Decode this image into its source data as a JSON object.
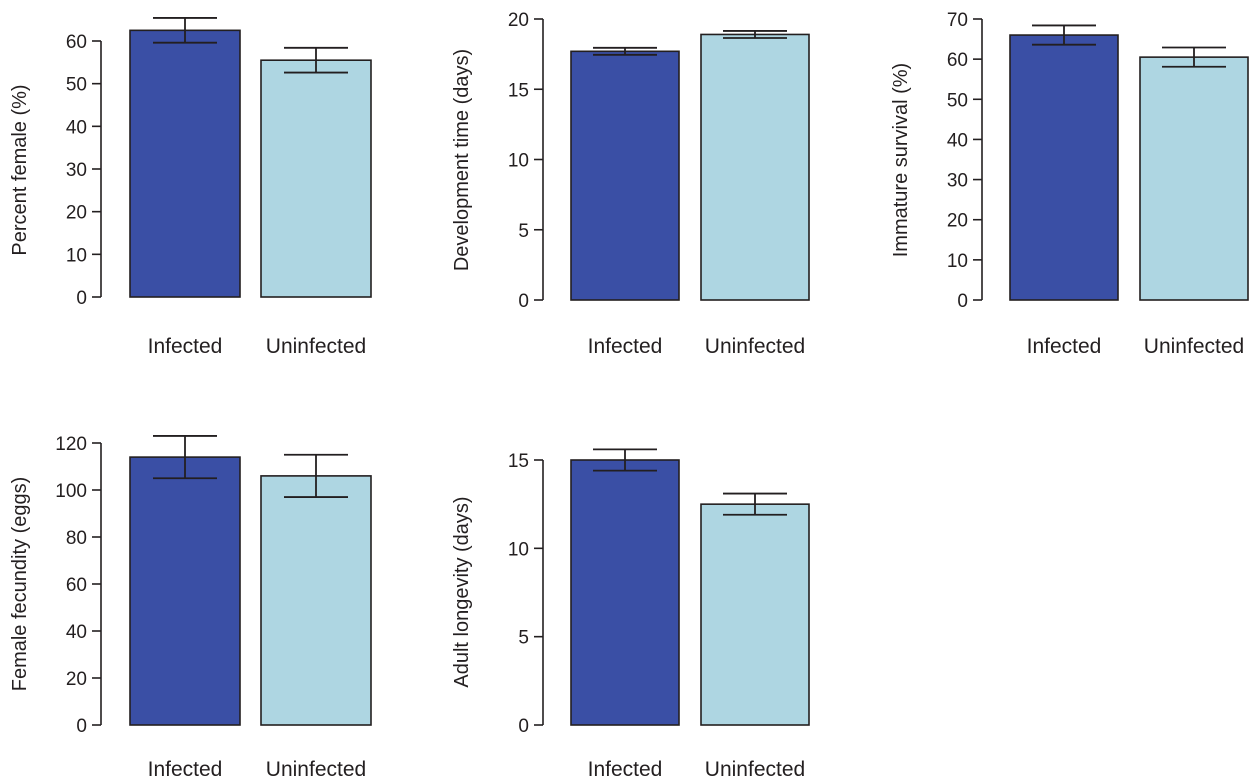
{
  "chart_data": [
    {
      "type": "bar",
      "categories": [
        "Infected",
        "Uninfected"
      ],
      "values": [
        62.5,
        55.5
      ],
      "errors": [
        2.9,
        2.9
      ],
      "ylabel": "Percent female (%)",
      "ylim": [
        0,
        65
      ],
      "yticks": [
        0,
        10,
        20,
        30,
        40,
        50,
        60
      ],
      "colors": [
        "#3a4fa5",
        "#aed6e2"
      ],
      "grid": false
    },
    {
      "type": "bar",
      "categories": [
        "Infected",
        "Uninfected"
      ],
      "values": [
        17.7,
        18.9
      ],
      "errors": [
        0.25,
        0.25
      ],
      "ylabel": "Development time (days)",
      "ylim": [
        0,
        20
      ],
      "yticks": [
        0,
        5,
        10,
        15,
        20
      ],
      "colors": [
        "#3a4fa5",
        "#aed6e2"
      ],
      "grid": false
    },
    {
      "type": "bar",
      "categories": [
        "Infected",
        "Uninfected"
      ],
      "values": [
        66.0,
        60.5
      ],
      "errors": [
        2.4,
        2.4
      ],
      "ylabel": "Immature survival (%)",
      "ylim": [
        0,
        70
      ],
      "yticks": [
        0,
        10,
        20,
        30,
        40,
        50,
        60,
        70
      ],
      "colors": [
        "#3a4fa5",
        "#aed6e2"
      ],
      "grid": false
    },
    {
      "type": "bar",
      "categories": [
        "Infected",
        "Uninfected"
      ],
      "values": [
        114,
        106
      ],
      "errors": [
        9,
        9
      ],
      "ylabel": "Female fecundity (eggs)",
      "ylim": [
        0,
        120
      ],
      "yticks": [
        0,
        20,
        40,
        60,
        80,
        100,
        120
      ],
      "colors": [
        "#3a4fa5",
        "#aed6e2"
      ],
      "grid": false
    },
    {
      "type": "bar",
      "categories": [
        "Infected",
        "Uninfected"
      ],
      "values": [
        15.0,
        12.5
      ],
      "errors": [
        0.6,
        0.6
      ],
      "ylabel": "Adult longevity (days)",
      "ylim": [
        0,
        15
      ],
      "yticks": [
        0,
        5,
        10,
        15
      ],
      "colors": [
        "#3a4fa5",
        "#aed6e2"
      ],
      "grid": false
    }
  ]
}
